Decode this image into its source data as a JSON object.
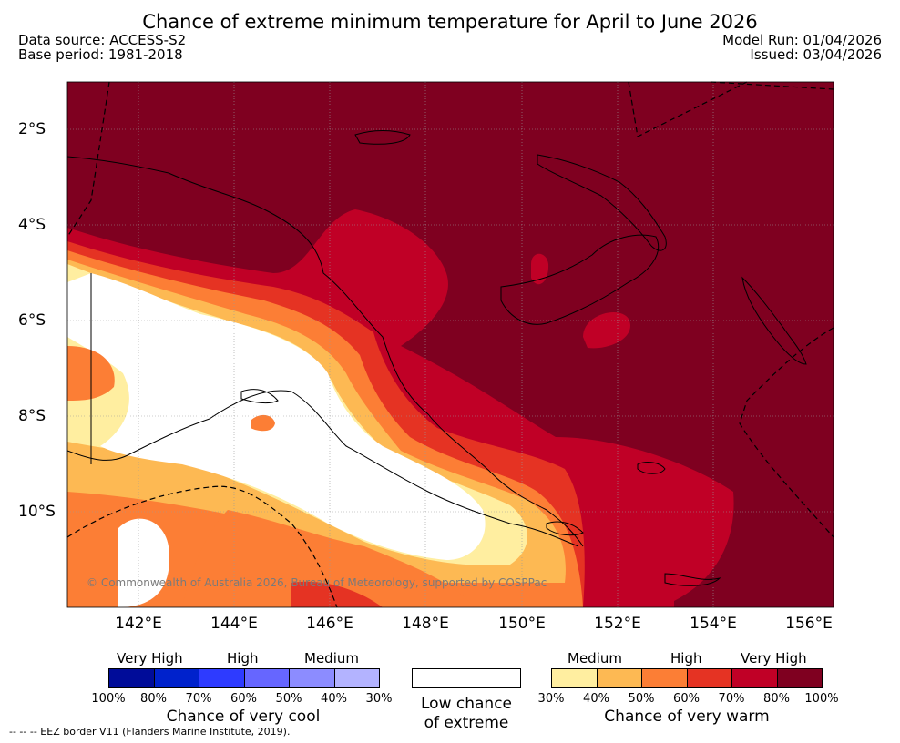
{
  "title": "Chance of extreme minimum temperature for April to June 2026",
  "meta": {
    "data_source": "Data source: ACCESS-S2",
    "base_period": "Base period: 1981-2018",
    "model_run": "Model Run: 01/04/2026",
    "issued": "Issued: 03/04/2026"
  },
  "map": {
    "lat_labels": [
      "2°S",
      "4°S",
      "6°S",
      "8°S",
      "10°S"
    ],
    "lon_labels": [
      "142°E",
      "144°E",
      "146°E",
      "148°E",
      "150°E",
      "152°E",
      "154°E",
      "156°E"
    ],
    "copyright": "© Commonwealth of Australia 2026, Bureau of Meteorology, supported by COSPPac",
    "colors": {
      "very_high_warm": "#7f0020",
      "high_warm": "#c00026",
      "medium_high_warm": "#e53323",
      "medium_warm": "#fc7e35",
      "low_medium_warm": "#fdb953",
      "low_warm": "#ffeea0",
      "none": "#ffffff"
    }
  },
  "legend": {
    "cool": {
      "headings": [
        "Very High",
        "High",
        "Medium"
      ],
      "colors": [
        "#000c99",
        "#0022cc",
        "#2e3bff",
        "#6666ff",
        "#8c8cff",
        "#b3b3ff"
      ],
      "percents": [
        "100%",
        "80%",
        "70%",
        "60%",
        "50%",
        "40%",
        "30%"
      ],
      "caption": "Chance of very cool"
    },
    "neutral": {
      "color": "#ffffff",
      "caption_line1": "Low chance",
      "caption_line2": "of extreme"
    },
    "warm": {
      "headings": [
        "Medium",
        "High",
        "Very High"
      ],
      "colors": [
        "#ffeea0",
        "#fdb953",
        "#fc7e35",
        "#e53323",
        "#c00026",
        "#7f0020"
      ],
      "percents": [
        "30%",
        "40%",
        "50%",
        "60%",
        "70%",
        "80%",
        "100%"
      ],
      "caption": "Chance of very warm"
    }
  },
  "footnote": "--  --  -- EEZ border V11 (Flanders Marine Institute, 2019)."
}
